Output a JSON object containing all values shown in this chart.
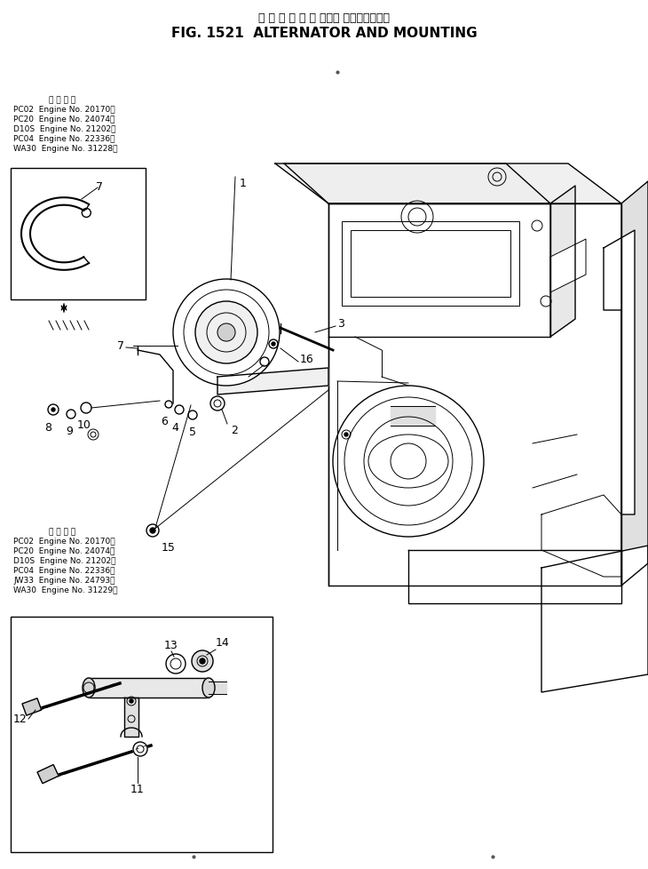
{
  "title_japanese": "オ ル タ ネ ー タ および マウンティング",
  "title_english": "FIG. 1521  ALTERNATOR AND MOUNTING",
  "bg_color": "#ffffff",
  "upper_info_title": "適 用 号 機",
  "upper_info_lines": [
    "PC02  Engine No. 20170～",
    "PC20  Engine No. 24074～",
    "D10S  Engine No. 21202～",
    "PC04  Engine No. 22336～",
    "WA30  Engine No. 31228～"
  ],
  "lower_info_title": "適 用 号 機",
  "lower_info_lines": [
    "PC02  Engine No. 20170～",
    "PC20  Engine No. 24074～",
    "D10S  Engine No. 21202～",
    "PC04  Engine No. 22336～",
    "JW33  Engine No. 24793～",
    "WA30  Engine No. 31229～"
  ],
  "text_color": "#000000",
  "line_color": "#000000"
}
